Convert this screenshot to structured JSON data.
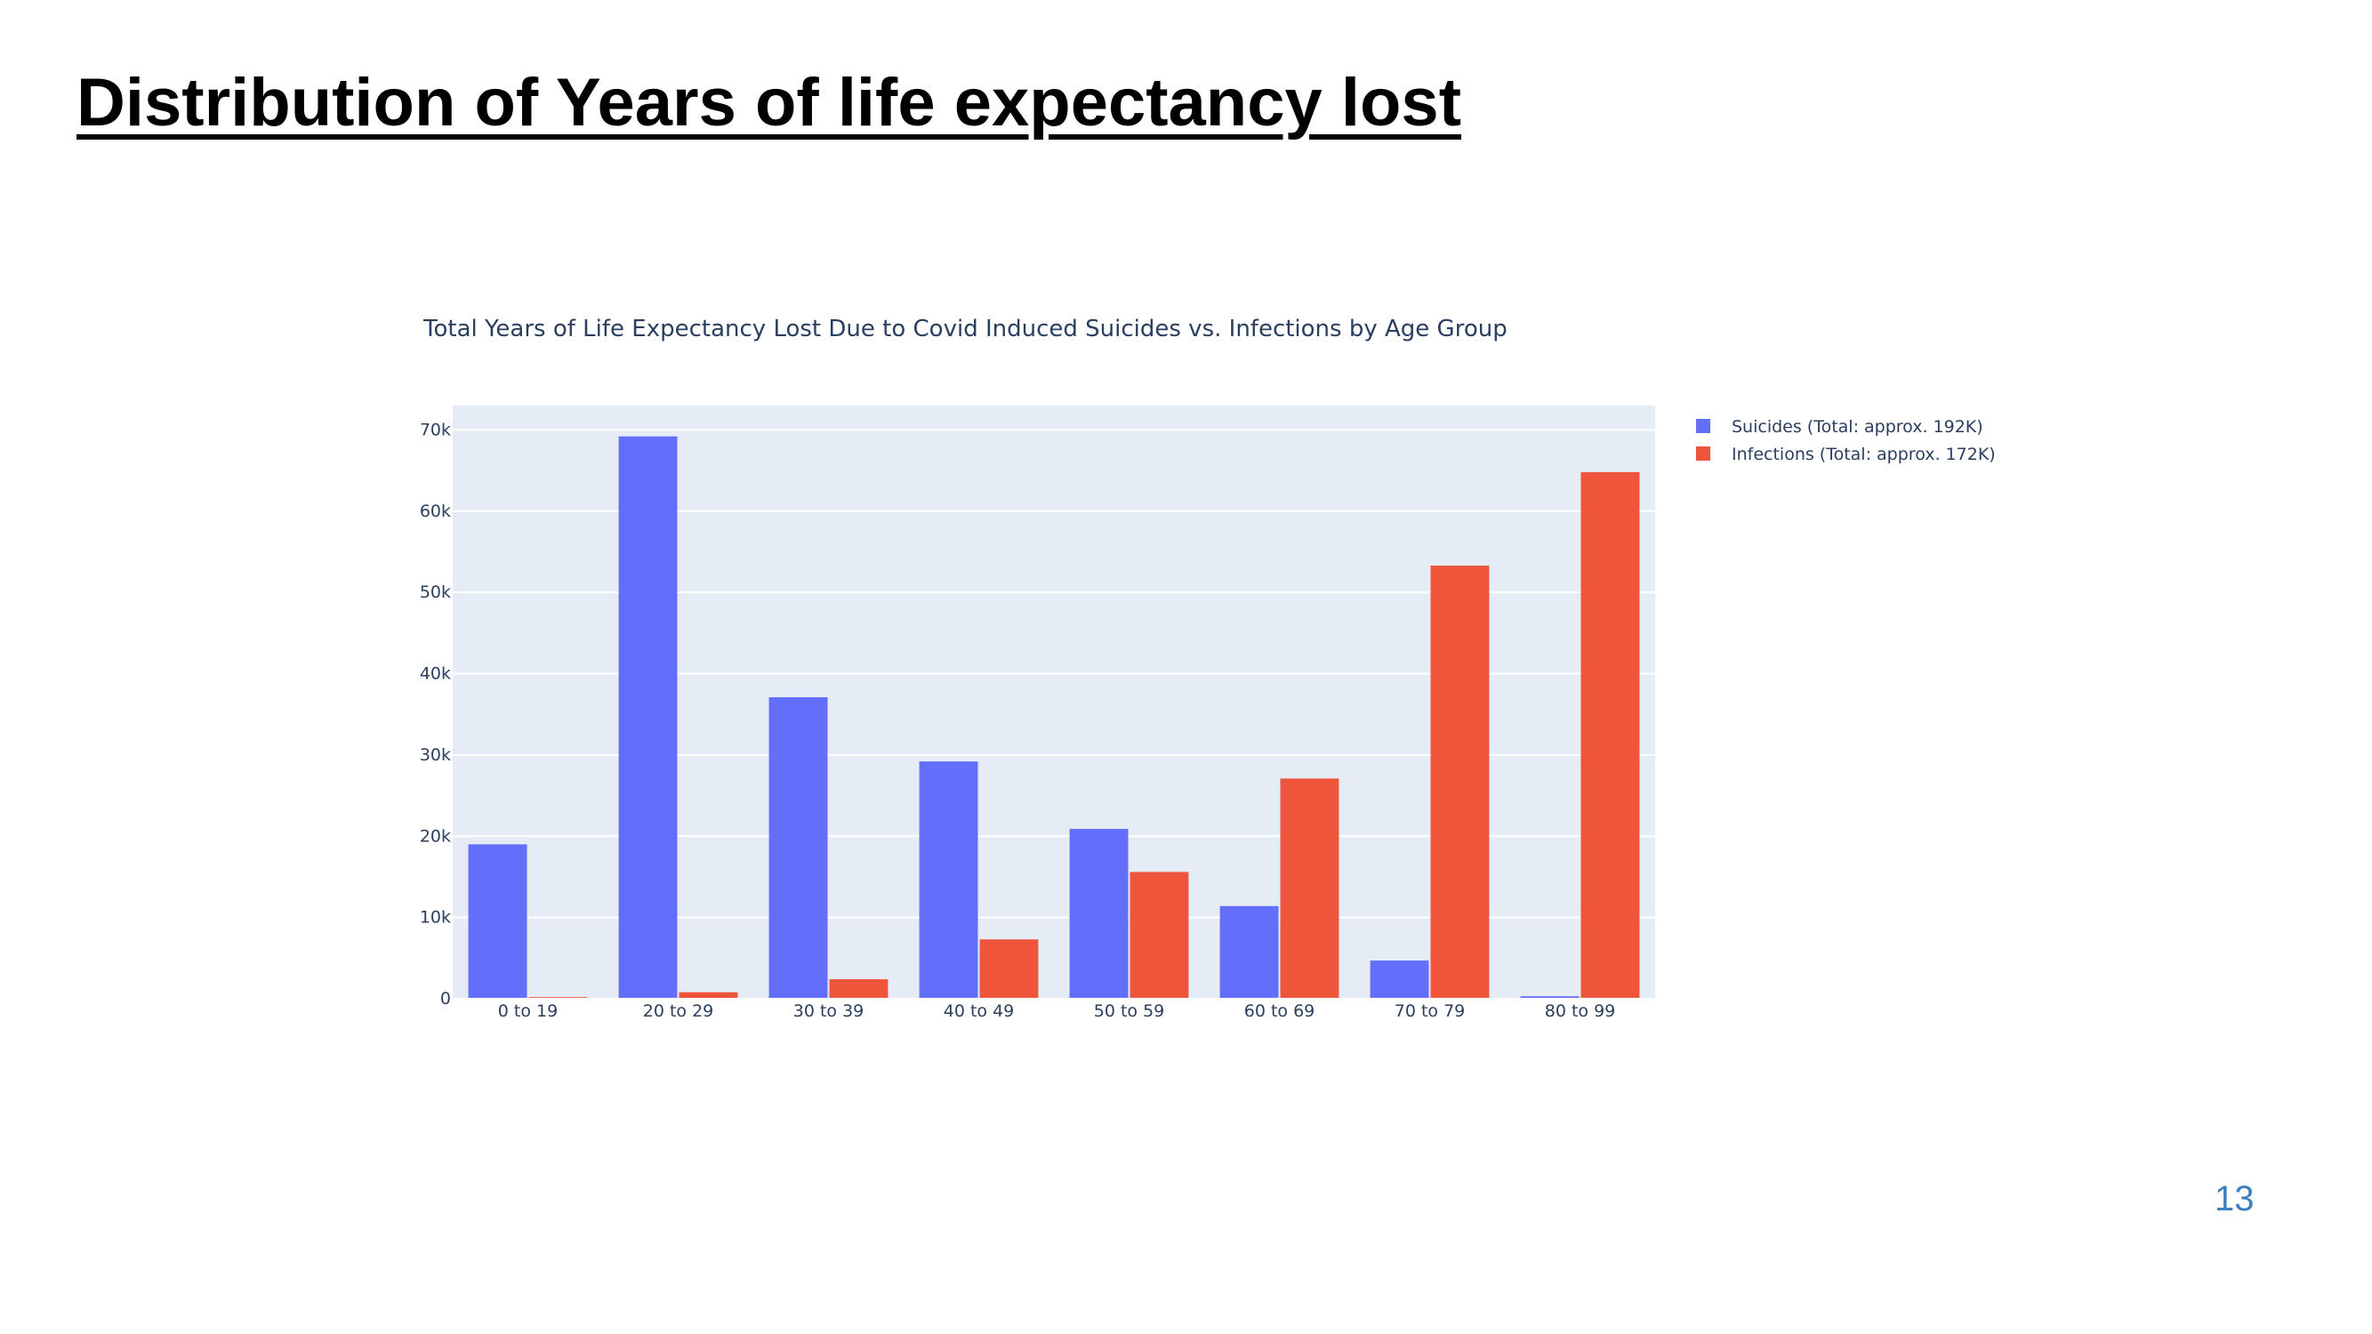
{
  "slide": {
    "title": "Distribution of Years of life expectancy lost",
    "page_number": "13"
  },
  "colors": {
    "suicides": "#636efa",
    "infections": "#ef553b",
    "plot_background": "#e5ecf6",
    "gridline": "#ffffff",
    "text": "#2a3f5f"
  },
  "chart_data": {
    "type": "bar",
    "title": "Total Years of Life Expectancy Lost Due to Covid Induced Suicides vs. Infections by Age Group",
    "xlabel": "",
    "ylabel": "",
    "categories": [
      "0 to 19",
      "20 to 29",
      "30 to 39",
      "40 to 49",
      "50 to 59",
      "60 to 69",
      "70 to 79",
      "80 to 99"
    ],
    "series": [
      {
        "name": "Suicides (Total: approx. 192K)",
        "values": [
          19000,
          69200,
          37100,
          29200,
          20900,
          11400,
          4700,
          300
        ]
      },
      {
        "name": "Infections (Total: approx. 172K)",
        "values": [
          200,
          800,
          2400,
          7300,
          15600,
          27100,
          53300,
          64800
        ]
      }
    ],
    "ylim": [
      0,
      73000
    ],
    "yticks": [
      0,
      10000,
      20000,
      30000,
      40000,
      50000,
      60000,
      70000
    ],
    "ytick_labels": [
      "0",
      "10k",
      "20k",
      "30k",
      "40k",
      "50k",
      "60k",
      "70k"
    ],
    "grid": true,
    "legend_position": "right"
  }
}
